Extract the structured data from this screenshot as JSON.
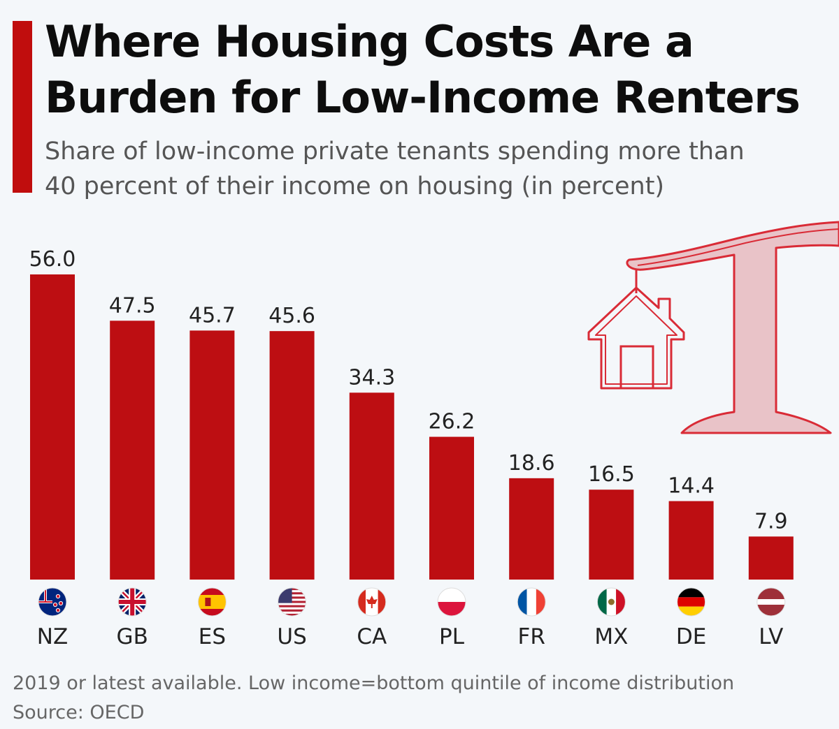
{
  "header": {
    "title_line1": "Where Housing Costs Are a",
    "title_line2": "Burden for Low-Income Renters",
    "subtitle_line1": "Share of low-income private tenants spending more than",
    "subtitle_line2": "40 percent of their income on housing (in percent)"
  },
  "footer": {
    "note": "2019 or latest available. Low income=bottom quintile of income distribution",
    "source": "Source: OECD"
  },
  "colors": {
    "bar": "#bd0e12",
    "accent": "#c00d0d",
    "illustration_stroke": "#d92b36",
    "illustration_fill": "#e9c3c8"
  },
  "illustration": {
    "icon": "house-hanging-from-crane-icon"
  },
  "chart_data": {
    "type": "bar",
    "title": "Where Housing Costs Are a Burden for Low-Income Renters",
    "subtitle": "Share of low-income private tenants spending more than 40 percent of their income on housing (in percent)",
    "xlabel": "",
    "ylabel": "",
    "ylim": [
      0,
      60
    ],
    "grid": false,
    "categories": [
      "NZ",
      "GB",
      "ES",
      "US",
      "CA",
      "PL",
      "FR",
      "MX",
      "DE",
      "LV"
    ],
    "values": [
      56.0,
      47.5,
      45.7,
      45.6,
      34.3,
      26.2,
      18.6,
      16.5,
      14.4,
      7.9
    ],
    "value_labels": [
      "56.0",
      "47.5",
      "45.7",
      "45.6",
      "34.3",
      "26.2",
      "18.6",
      "16.5",
      "14.4",
      "7.9"
    ],
    "flags": [
      "new-zealand-flag-icon",
      "united-kingdom-flag-icon",
      "spain-flag-icon",
      "united-states-flag-icon",
      "canada-flag-icon",
      "poland-flag-icon",
      "france-flag-icon",
      "mexico-flag-icon",
      "germany-flag-icon",
      "latvia-flag-icon"
    ]
  }
}
